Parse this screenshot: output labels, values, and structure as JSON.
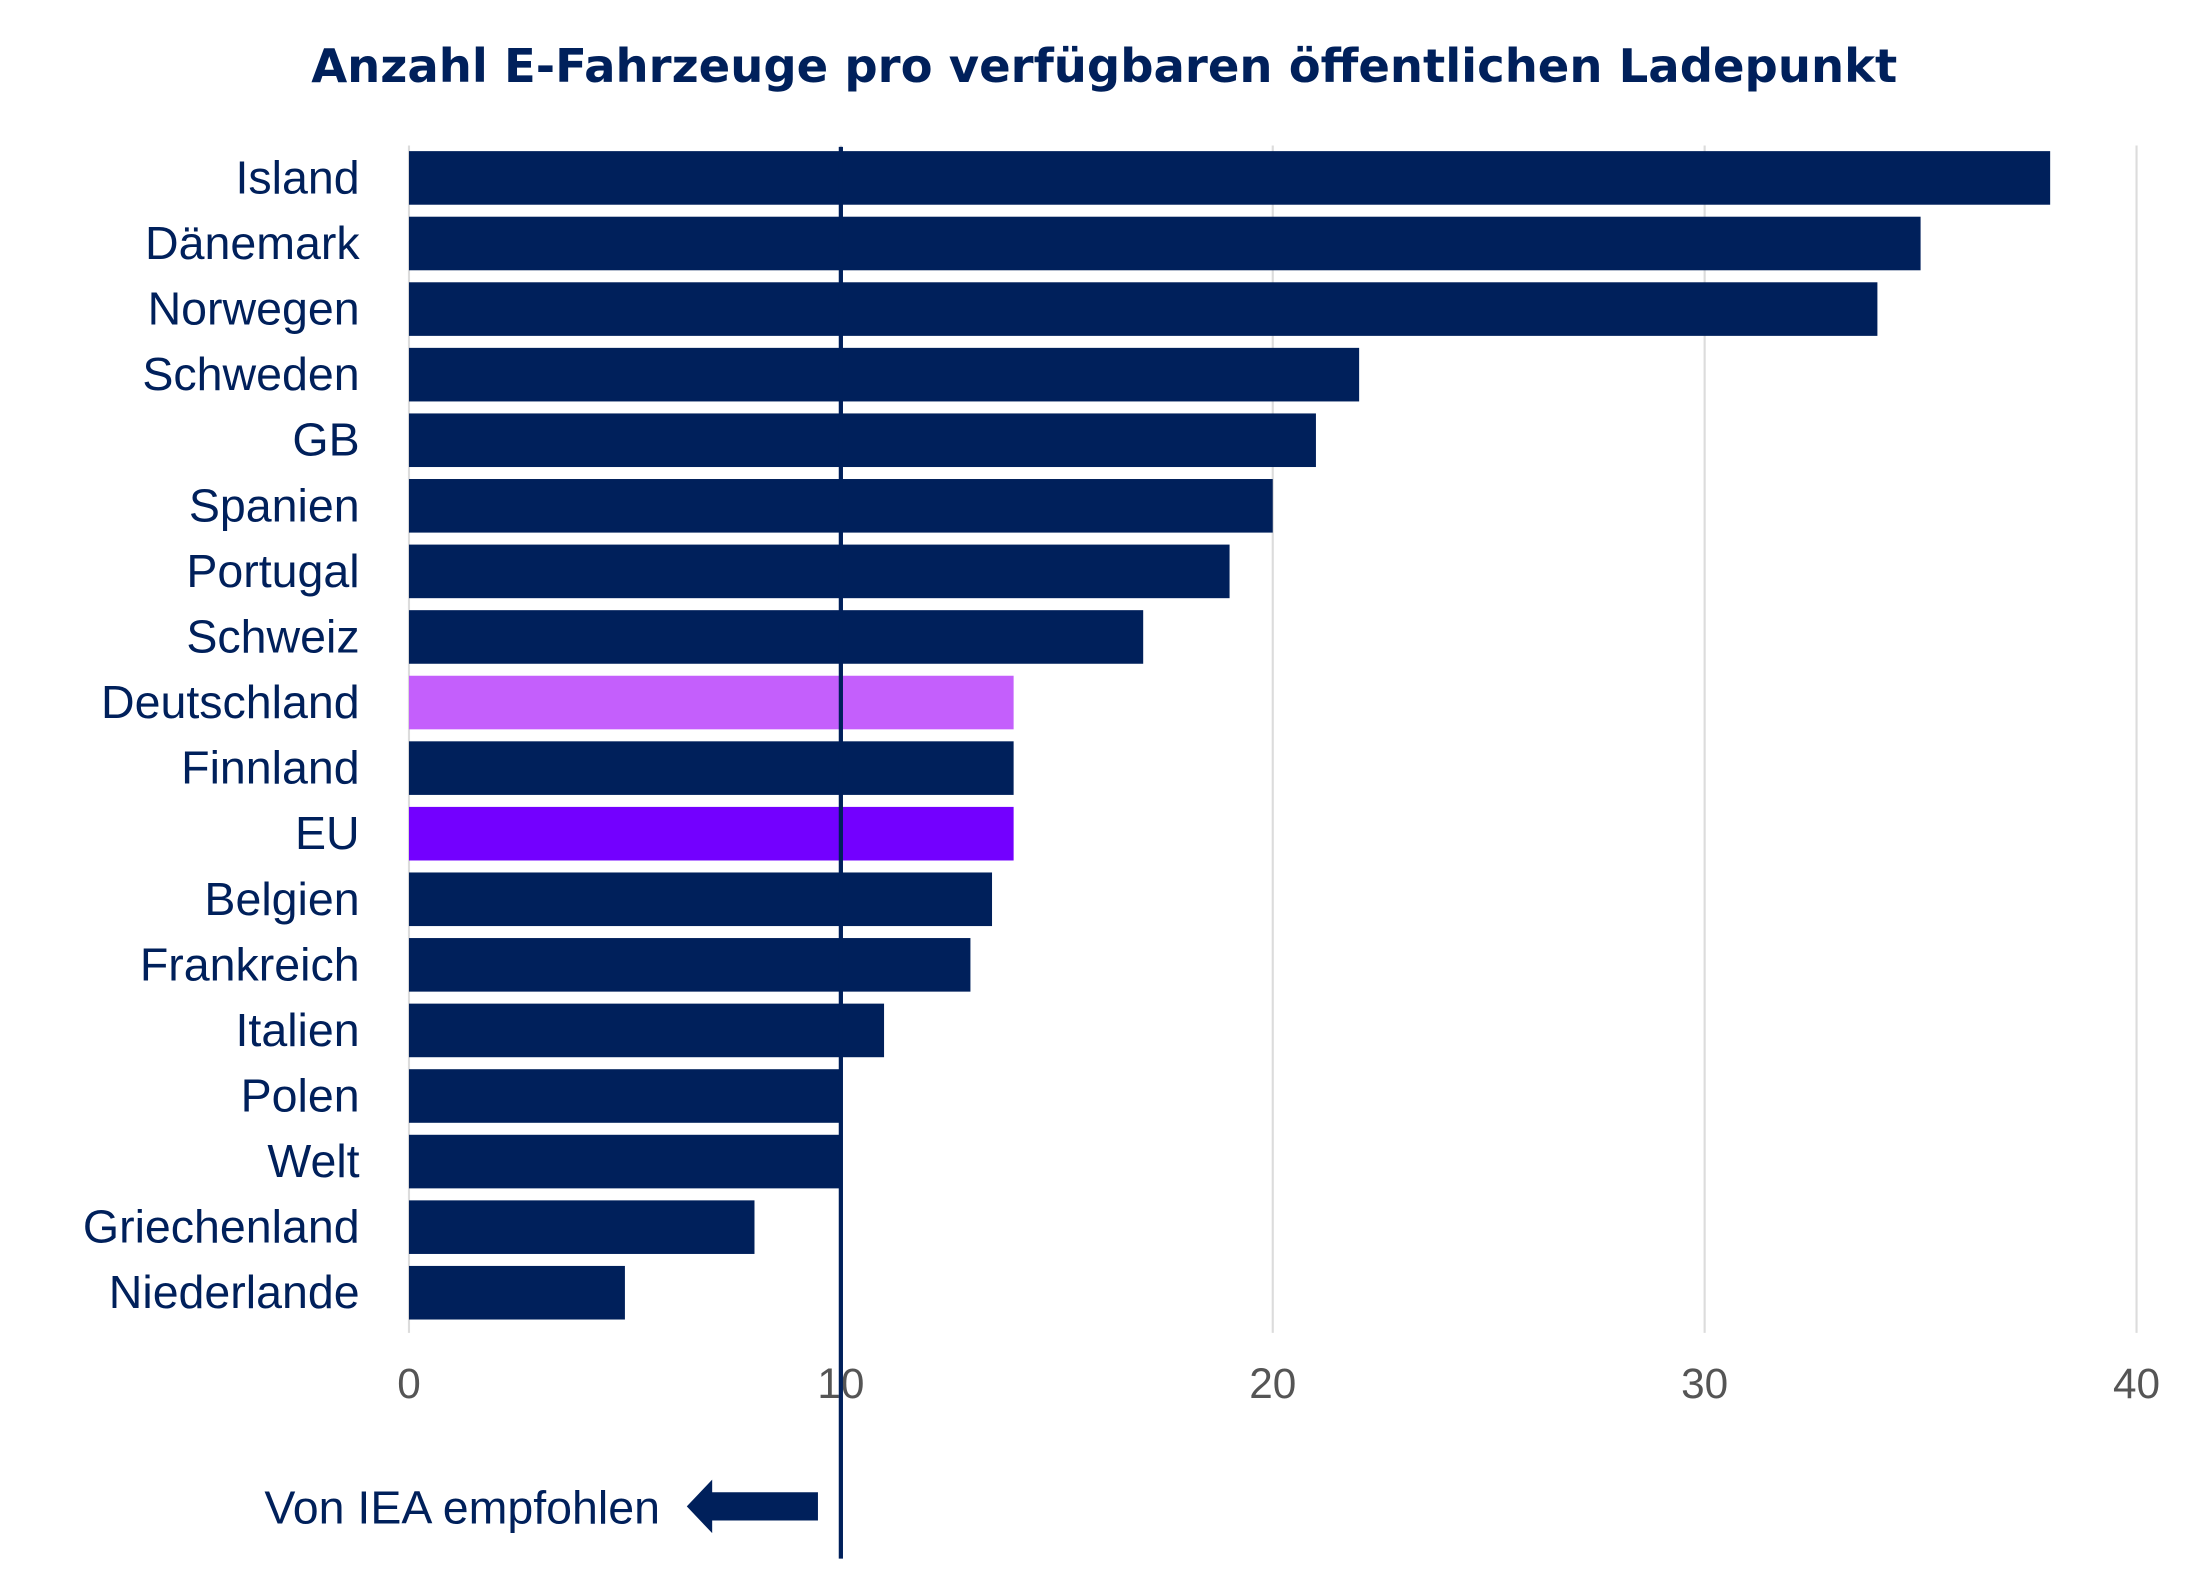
{
  "chart_data": {
    "type": "bar",
    "orientation": "horizontal",
    "title": "Anzahl E-Fahrzeuge pro verfügbaren öffentlichen Ladepunkt",
    "categories": [
      "Island",
      "Dänemark",
      "Norwegen",
      "Schweden",
      "GB",
      "Spanien",
      "Portugal",
      "Schweiz",
      "Deutschland",
      "Finnland",
      "EU",
      "Belgien",
      "Frankreich",
      "Italien",
      "Polen",
      "Welt",
      "Griechenland",
      "Niederlande"
    ],
    "values": [
      38,
      35,
      34,
      22,
      21,
      20,
      19,
      17,
      14,
      14,
      14,
      13.5,
      13,
      11,
      10,
      10,
      8,
      5
    ],
    "colors": [
      "#00205b",
      "#00205b",
      "#00205b",
      "#00205b",
      "#00205b",
      "#00205b",
      "#00205b",
      "#00205b",
      "#c45ffc",
      "#00205b",
      "#7300ff",
      "#00205b",
      "#00205b",
      "#00205b",
      "#00205b",
      "#00205b",
      "#00205b",
      "#00205b"
    ],
    "xlim": [
      0,
      40
    ],
    "xticks": [
      "0",
      "10",
      "20",
      "30",
      "40"
    ],
    "grid": true,
    "reference_line": {
      "value": 10,
      "label": "Von IEA empfohlen"
    }
  }
}
